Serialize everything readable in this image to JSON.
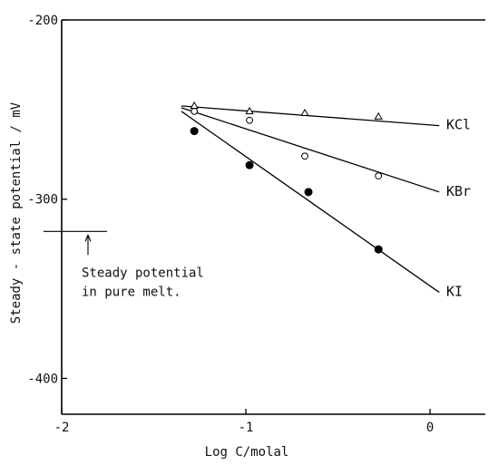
{
  "chart_data": {
    "type": "scatter",
    "xlabel": "Log C/molal",
    "ylabel": "Steady - state potential / mV",
    "xlim": [
      -2,
      0.3
    ],
    "ylim": [
      -420,
      -200
    ],
    "x_ticks": [
      "-2",
      "-1",
      "0"
    ],
    "y_ticks": [
      "-200",
      "-300",
      "-400"
    ],
    "grid": false,
    "series": [
      {
        "name": "KCl",
        "label": "KCl",
        "marker": "open-triangle",
        "points": [
          [
            -1.28,
            -248
          ],
          [
            -0.98,
            -251
          ],
          [
            -0.68,
            -252
          ],
          [
            -0.28,
            -254
          ]
        ],
        "fit": [
          [
            -1.35,
            -248
          ],
          [
            0.05,
            -259
          ]
        ]
      },
      {
        "name": "KBr",
        "label": "KBr",
        "marker": "open-circle",
        "points": [
          [
            -1.28,
            -251
          ],
          [
            -0.98,
            -256
          ],
          [
            -0.68,
            -276
          ],
          [
            -0.28,
            -287
          ]
        ],
        "fit": [
          [
            -1.35,
            -249
          ],
          [
            0.05,
            -296
          ]
        ]
      },
      {
        "name": "KI",
        "label": "KI",
        "marker": "filled-circle",
        "points": [
          [
            -1.28,
            -262
          ],
          [
            -0.98,
            -281
          ],
          [
            -0.66,
            -296
          ],
          [
            -0.28,
            -328
          ]
        ],
        "fit": [
          [
            -1.35,
            -251
          ],
          [
            0.05,
            -352
          ]
        ]
      }
    ],
    "reference": {
      "y": -318,
      "label_lines": [
        "Steady potential",
        "in pure melt."
      ]
    }
  }
}
